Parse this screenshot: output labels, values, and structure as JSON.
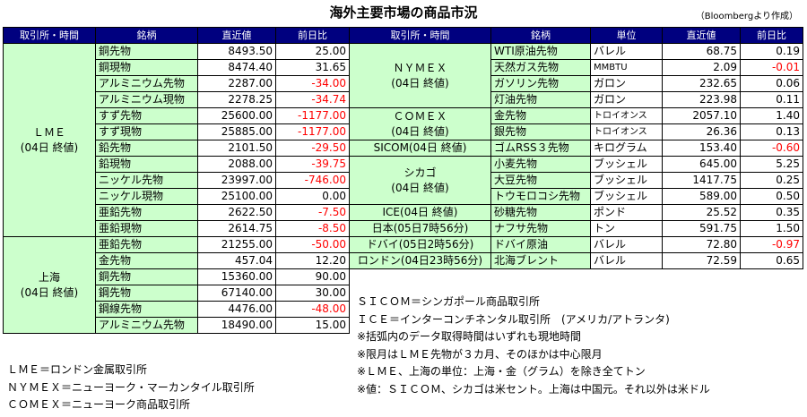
{
  "title": "海外主要市場の商品市況",
  "source": "（Bloombergより作成）",
  "left_headers": [
    "取引所・時間",
    "銘柄",
    "直近値",
    "前日比"
  ],
  "right_headers": [
    "取引所・時間",
    "銘柄",
    "単位",
    "直近値",
    "前日比"
  ],
  "left_groups": [
    {
      "exchange": [
        "ＬＭＥ",
        "(04日 終値)"
      ],
      "rows": [
        {
          "name": "銅先物",
          "value": "8493.50",
          "change": "25.00",
          "neg": false
        },
        {
          "name": "銅現物",
          "value": "8474.40",
          "change": "31.65",
          "neg": false
        },
        {
          "name": "アルミニウム先物",
          "value": "2287.00",
          "change": "-34.00",
          "neg": true
        },
        {
          "name": "アルミニウム現物",
          "value": "2278.25",
          "change": "-34.74",
          "neg": true
        },
        {
          "name": "すず先物",
          "value": "25600.00",
          "change": "-1177.00",
          "neg": true
        },
        {
          "name": "すず現物",
          "value": "25885.00",
          "change": "-1177.00",
          "neg": true
        },
        {
          "name": "鉛先物",
          "value": "2101.50",
          "change": "-29.50",
          "neg": true
        },
        {
          "name": "鉛現物",
          "value": "2088.00",
          "change": "-39.75",
          "neg": true
        },
        {
          "name": "ニッケル先物",
          "value": "23997.00",
          "change": "-746.00",
          "neg": true
        },
        {
          "name": "ニッケル現物",
          "value": "25100.00",
          "change": "0.00",
          "neg": false
        },
        {
          "name": "亜鉛先物",
          "value": "2622.50",
          "change": "-7.50",
          "neg": true
        },
        {
          "name": "亜鉛現物",
          "value": "2614.75",
          "change": "-8.50",
          "neg": true
        }
      ]
    },
    {
      "exchange": [
        "上海",
        "(04日 終値)"
      ],
      "rows": [
        {
          "name": "亜鉛先物",
          "value": "21255.00",
          "change": "-50.00",
          "neg": true
        },
        {
          "name": "金先物",
          "value": "457.04",
          "change": "12.20",
          "neg": false
        },
        {
          "name": "銅先物",
          "value": "15360.00",
          "change": "90.00",
          "neg": false
        },
        {
          "name": "鋼先物",
          "value": "67140.00",
          "change": "30.00",
          "neg": false
        },
        {
          "name": "鋼線先物",
          "value": "4476.00",
          "change": "-48.00",
          "neg": true
        },
        {
          "name": "アルミニウム先物",
          "value": "18490.00",
          "change": "15.00",
          "neg": false
        }
      ]
    }
  ],
  "right_groups": [
    {
      "exchange": [
        "ＮＹＭＥＸ",
        "(04日 終値)"
      ],
      "small": false,
      "rows": [
        {
          "name": "WTI原油先物",
          "unit": "バレル",
          "value": "68.75",
          "change": "0.19",
          "neg": false
        },
        {
          "name": "天然ガス先物",
          "unit": "MMBTU",
          "value": "2.09",
          "change": "-0.01",
          "neg": true
        },
        {
          "name": "ガソリン先物",
          "unit": "ガロン",
          "value": "232.65",
          "change": "0.06",
          "neg": false
        },
        {
          "name": "灯油先物",
          "unit": "ガロン",
          "value": "223.98",
          "change": "0.11",
          "neg": false
        }
      ]
    },
    {
      "exchange": [
        "ＣＯＭＥＸ",
        "(04日 終値)"
      ],
      "small": false,
      "rows": [
        {
          "name": "金先物",
          "unit": "トロイオンス",
          "value": "2057.10",
          "change": "1.40",
          "neg": false
        },
        {
          "name": "銀先物",
          "unit": "トロイオンス",
          "value": "26.36",
          "change": "0.13",
          "neg": false
        }
      ]
    },
    {
      "exchange": [
        "SICOM(04日 終値)"
      ],
      "small": false,
      "rows": [
        {
          "name": "ゴムRSS３先物",
          "unit": "キログラム",
          "value": "153.40",
          "change": "-0.60",
          "neg": true
        }
      ]
    },
    {
      "exchange": [
        "シカゴ",
        "(04日 終値)"
      ],
      "small": false,
      "rows": [
        {
          "name": "小麦先物",
          "unit": "ブッシェル",
          "value": "645.00",
          "change": "5.25",
          "neg": false
        },
        {
          "name": "大豆先物",
          "unit": "ブッシェル",
          "value": "1417.75",
          "change": "0.25",
          "neg": false
        },
        {
          "name": "トウモロコシ先物",
          "unit": "ブッシェル",
          "value": "589.00",
          "change": "0.50",
          "neg": false
        }
      ]
    },
    {
      "exchange": [
        "ICE(04日 終値)"
      ],
      "small": false,
      "rows": [
        {
          "name": "砂糖先物",
          "unit": "ポンド",
          "value": "25.52",
          "change": "0.35",
          "neg": false
        }
      ]
    },
    {
      "exchange": [
        "日本(05日7時56分)"
      ],
      "small": false,
      "rows": [
        {
          "name": "ナフサ先物",
          "unit": "トン",
          "value": "591.75",
          "change": "1.50",
          "neg": false
        }
      ]
    },
    {
      "exchange": [
        "ドバイ(05日2時56分)"
      ],
      "small": false,
      "rows": [
        {
          "name": "ドバイ原油",
          "unit": "バレル",
          "value": "72.80",
          "change": "-0.97",
          "neg": true
        }
      ]
    },
    {
      "exchange": [
        "ロンドン(04日23時56分)"
      ],
      "small": false,
      "rows": [
        {
          "name": "北海ブレント",
          "unit": "バレル",
          "value": "72.59",
          "change": "0.65",
          "neg": false
        }
      ]
    }
  ],
  "notes_left": [
    "ＬＭＥ＝ロンドン金属取引所",
    "ＮＹＭＥＸ＝ニューヨーク・マーカンタイル取引所",
    "ＣＯＭＥＸ＝ニューヨーク商品取引所"
  ],
  "notes_right": [
    "ＳＩＣＯＭ＝シンガポール商品取引所",
    "ＩＣＥ＝インターコンチネンタル取引所　(アメリカ/アトランタ)",
    "※括弧内のデータ取得時間はいずれも現地時間",
    "※限月はＬＭＥ先物が３カ月、そのほかは中心限月",
    "※ＬＭＥ、上海の単位：上海・金（グラム）を除き全てトン",
    "※値：ＳＩＣＯＭ、シカゴは米セント。上海は中国元。それ以外は米ドル"
  ]
}
